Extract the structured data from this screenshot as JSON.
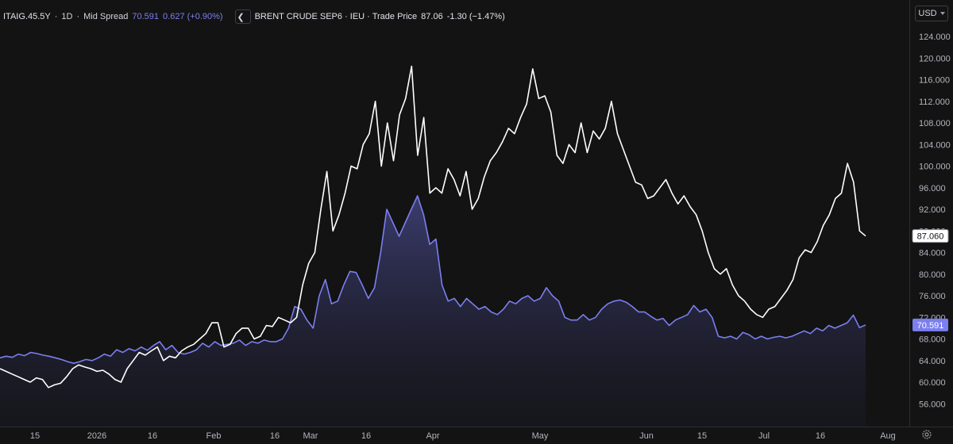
{
  "legend": {
    "symbol1": "ITAIG.45.5Y",
    "interval": "1D",
    "field1": "Mid Spread",
    "last1": "70.591",
    "change1": "0.627 (+0.90%)",
    "collapse_icon": "chevron-left-icon",
    "symbol2": "BRENT CRUDE SEP6 · IEU · Trade Price",
    "last2": "87.06",
    "change2": "-1.30 (−1.47%)"
  },
  "currency": "USD",
  "settings_icon": "gear-icon",
  "colors": {
    "background": "#131313",
    "series1": "#7b7ff0",
    "series2": "#ffffff",
    "axis_text": "#b2b5be"
  },
  "chart_data": {
    "type": "line",
    "y_ticks": [
      "56.000",
      "60.000",
      "64.000",
      "68.000",
      "72.000",
      "76.000",
      "80.000",
      "84.000",
      "88.000",
      "92.000",
      "96.000",
      "100.000",
      "104.000",
      "108.000",
      "112.000",
      "116.000",
      "120.000",
      "124.000"
    ],
    "x_ticks": [
      "15",
      "2026",
      "16",
      "Feb",
      "16",
      "Mar",
      "16",
      "Apr",
      "May",
      "Jun",
      "15",
      "Jul",
      "16",
      "Aug"
    ],
    "ylim": [
      54,
      126
    ],
    "grid": false,
    "legend_position": "top-left",
    "series": [
      {
        "name": "ITAIG.45.5Y · 1D · Mid Spread",
        "color": "#7b7ff0",
        "fill": true,
        "last_label": "70.591",
        "values": [
          64.5,
          64.8,
          64.6,
          65.2,
          64.9,
          65.5,
          65.3,
          65.0,
          64.8,
          64.5,
          64.2,
          63.8,
          63.5,
          63.8,
          64.2,
          64.0,
          64.5,
          65.2,
          64.8,
          66.0,
          65.5,
          66.2,
          65.8,
          66.5,
          65.9,
          66.8,
          67.5,
          66.0,
          66.8,
          65.5,
          65.2,
          65.5,
          66.0,
          67.2,
          66.5,
          67.5,
          66.8,
          67.0,
          67.2,
          67.8,
          66.8,
          67.5,
          67.2,
          67.8,
          67.5,
          67.5,
          68.0,
          70.0,
          74.0,
          73.5,
          71.5,
          70.0,
          76.0,
          79.0,
          74.5,
          75.0,
          78.0,
          80.5,
          80.3,
          78.0,
          75.5,
          77.5,
          84.0,
          92.0,
          89.5,
          87.0,
          89.5,
          92.0,
          94.5,
          91.0,
          85.5,
          86.5,
          78.0,
          75.0,
          75.5,
          74.0,
          75.5,
          74.5,
          73.5,
          74.0,
          73.0,
          72.5,
          73.5,
          75.0,
          74.5,
          75.5,
          76.0,
          75.0,
          75.5,
          77.5,
          76.0,
          75.0,
          72.0,
          71.5,
          71.5,
          72.5,
          71.5,
          72.0,
          73.5,
          74.5,
          75.0,
          75.2,
          74.8,
          74.0,
          73.0,
          73.0,
          72.2,
          71.5,
          71.8,
          70.5,
          71.5,
          72.0,
          72.5,
          74.2,
          73.0,
          73.5,
          72.0,
          68.5,
          68.2,
          68.5,
          68.0,
          69.2,
          68.8,
          68.0,
          68.5,
          68.0,
          68.3,
          68.5,
          68.2,
          68.5,
          69.0,
          69.5,
          69.0,
          70.0,
          69.5,
          70.5,
          70.0,
          70.5,
          71.0,
          72.4,
          70.1,
          70.591
        ]
      },
      {
        "name": "BRENT CRUDE SEP6 · IEU · Trade Price",
        "color": "#ffffff",
        "fill": false,
        "last_label": "87.060",
        "values": [
          62.5,
          62.0,
          61.5,
          61.0,
          60.5,
          60.0,
          60.8,
          60.5,
          59.0,
          59.5,
          59.8,
          61.0,
          62.5,
          63.2,
          62.8,
          62.5,
          62.0,
          62.2,
          61.5,
          60.5,
          60.0,
          62.5,
          64.0,
          65.5,
          65.0,
          65.8,
          66.5,
          64.0,
          64.8,
          64.5,
          65.8,
          66.5,
          67.0,
          68.0,
          69.0,
          71.0,
          71.0,
          66.5,
          67.0,
          69.0,
          70.0,
          70.0,
          68.0,
          68.5,
          70.5,
          70.3,
          72.0,
          71.5,
          71.0,
          72.0,
          78.0,
          82.0,
          84.0,
          92.0,
          99.0,
          88.0,
          91.0,
          95.0,
          100.0,
          99.5,
          104.0,
          106.0,
          112.0,
          100.0,
          108.0,
          101.0,
          109.5,
          112.5,
          118.5,
          102.0,
          109.0,
          95.0,
          96.0,
          95.0,
          99.5,
          97.5,
          94.5,
          99.0,
          92.0,
          94.0,
          98.0,
          101.0,
          102.5,
          104.5,
          107.0,
          106.0,
          109.0,
          111.5,
          118.0,
          112.5,
          113.0,
          110.0,
          102.0,
          100.5,
          104.0,
          102.5,
          108.0,
          102.5,
          106.5,
          105.0,
          107.0,
          112.0,
          106.0,
          103.0,
          100.0,
          97.0,
          96.5,
          94.0,
          94.5,
          96.0,
          97.5,
          95.0,
          93.0,
          94.5,
          92.5,
          91.0,
          88.0,
          84.0,
          81.0,
          80.0,
          81.0,
          78.0,
          76.0,
          75.0,
          73.5,
          72.5,
          72.0,
          73.5,
          74.0,
          75.5,
          77.0,
          79.0,
          83.0,
          84.5,
          84.0,
          86.0,
          89.0,
          91.0,
          94.0,
          95.0,
          100.5,
          97.0,
          88.0,
          87.06
        ]
      }
    ]
  }
}
